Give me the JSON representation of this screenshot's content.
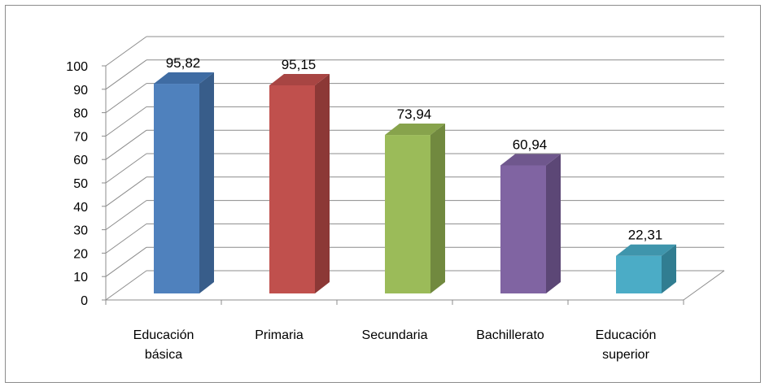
{
  "chart_data": {
    "type": "bar",
    "title": "",
    "xlabel": "",
    "ylabel": "",
    "categories": [
      "Educación básica",
      "Primaria",
      "Secundaria",
      "Bachillerato",
      "Educación superior"
    ],
    "category_lines": [
      [
        "Educación",
        "básica"
      ],
      [
        "Primaria"
      ],
      [
        "Secundaria"
      ],
      [
        "Bachillerato"
      ],
      [
        "Educación",
        "superior"
      ]
    ],
    "values": [
      95.82,
      95.15,
      73.94,
      60.94,
      22.31
    ],
    "value_labels": [
      "95,82",
      "95,15",
      "73,94",
      "60,94",
      "22,31"
    ],
    "ylim": [
      0,
      100
    ],
    "yticks": [
      "0",
      "10",
      "20",
      "30",
      "40",
      "50",
      "60",
      "70",
      "80",
      "90",
      "100"
    ],
    "grid": true,
    "legend": "none",
    "style": "3d-column",
    "colors": [
      {
        "front": "#4f81bd",
        "side": "#385d8a",
        "top": "#3f6ca3"
      },
      {
        "front": "#c0504d",
        "side": "#8c3836",
        "top": "#a84543"
      },
      {
        "front": "#9bbb59",
        "side": "#71893f",
        "top": "#87a34c"
      },
      {
        "front": "#8064a2",
        "side": "#5c4776",
        "top": "#6f578d"
      },
      {
        "front": "#4bacc6",
        "side": "#317d91",
        "top": "#3f95ac"
      }
    ]
  }
}
